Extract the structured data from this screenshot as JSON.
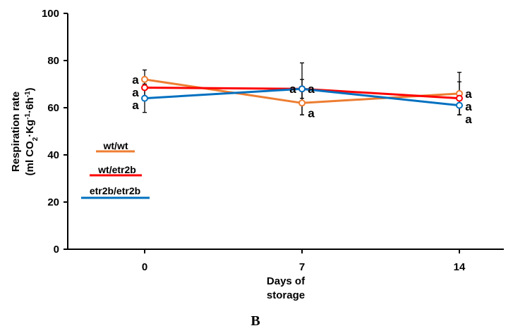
{
  "panel_label": "B",
  "chart_data": {
    "type": "line",
    "x": [
      0,
      7,
      14
    ],
    "x_tick_labels": [
      "0",
      "7",
      "14"
    ],
    "xlabel_lines": [
      "Days of",
      "storage"
    ],
    "ylabel_line1": "Respiration rate",
    "ylabel_line2": {
      "a": "(ml CO",
      "sub": "2",
      "b": "·Kg",
      "sup1": "-1",
      "c": "·6h",
      "sup2": "-1",
      "d": ")"
    },
    "ylim": [
      0,
      100
    ],
    "y_ticks": [
      0,
      20,
      40,
      60,
      80,
      100
    ],
    "y_tick_labels": [
      "0",
      "20",
      "40",
      "60",
      "80",
      "100"
    ],
    "grid": false,
    "legend_placement": "left",
    "series": [
      {
        "name": "wt/wt",
        "color": "#ED7D31",
        "values": [
          72,
          62,
          66
        ],
        "error": [
          4,
          5,
          9
        ],
        "sig": [
          "a",
          "a",
          "a"
        ]
      },
      {
        "name": "wt/etr2b",
        "color": "#FF0000",
        "values": [
          68.5,
          68,
          64
        ],
        "error": [
          4,
          11,
          7
        ],
        "sig": [
          "a",
          "a",
          "a"
        ]
      },
      {
        "name": "etr2b/etr2b",
        "color": "#0070C0",
        "values": [
          64,
          68,
          61
        ],
        "error": [
          6,
          4,
          4
        ],
        "sig": [
          "a",
          "a",
          "a"
        ]
      }
    ]
  }
}
